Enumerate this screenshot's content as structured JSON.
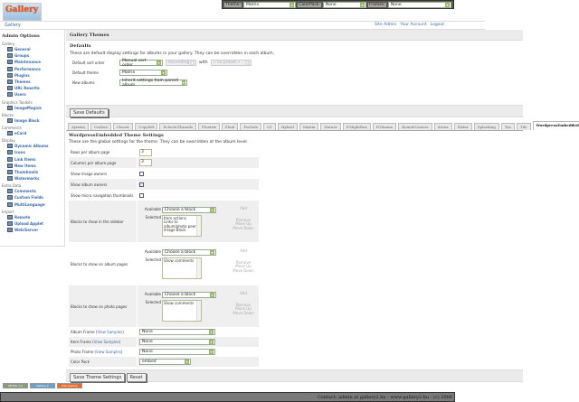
{
  "topbar": {
    "theme_label": "Theme:",
    "theme_value": "Matrix",
    "colorpack_label": "ColorPack:",
    "colorpack_value": "None",
    "frames_label": "Frames:",
    "frames_value": "None"
  },
  "logo": {
    "text": "Gallery"
  },
  "breadcrumb": "Gallery",
  "toplinks": [
    "Site Admin",
    "Your Account",
    "Logout"
  ],
  "sidebar": {
    "title": "Admin Options",
    "groups": [
      {
        "label": "Gallery",
        "items": [
          "General",
          "Groups",
          "Maintenance",
          "Performance",
          "Plugins",
          "Themes",
          "URL Rewrite",
          "Users"
        ]
      },
      {
        "label": "Graphics Toolkits",
        "items": [
          "ImageMagick"
        ]
      },
      {
        "label": "Blocks",
        "items": [
          "Image Block"
        ]
      },
      {
        "label": "Commerce",
        "items": [
          "eCard"
        ]
      },
      {
        "label": "Display",
        "items": [
          "Dynamic Albums",
          "Icons",
          "Link Items",
          "New Items",
          "Thumbnails",
          "Watermarks"
        ]
      },
      {
        "label": "Extra Data",
        "items": [
          "Comments",
          "Custom Fields",
          "MultiLanguage"
        ]
      },
      {
        "label": "Import",
        "items": [
          "Remote",
          "Upload Applet",
          "Web/Server"
        ]
      }
    ],
    "current": "Themes"
  },
  "main": {
    "title": "Gallery Themes",
    "defaults": {
      "heading": "Defaults",
      "description": "These are default display settings for albums in your gallery.  They can be overridden in each album.",
      "sort_label": "Default sort order",
      "sort_value": "Manual sort order",
      "sort_dir": "Ascending",
      "with_label": "with",
      "with_value": "« no preset »",
      "theme_label": "Default theme",
      "theme_value": "Matrix",
      "new_label": "New albums",
      "new_value": "Inherit settings from parent album",
      "save_label": "Save Defaults"
    },
    "tabs": [
      "Ajaxian",
      "Carbon",
      "Classic",
      "Copyleft",
      "EclecticThreads",
      "Floatrix",
      "Fluid",
      "ForSale",
      "G1",
      "Hybrid",
      "Matrix",
      "Nature",
      "PGlightBox",
      "PGtheme",
      "RoundCorners",
      "Siriux",
      "Slider",
      "Splashing",
      "Tea",
      "Tile",
      "WordpressEmbedded"
    ],
    "active_tab": "WordpressEmbedded",
    "settings": {
      "heading": "WordpressEmbedded Theme Settings",
      "description": "These are the global settings for the theme.  They can be overridden at the album level.",
      "rows_label": "Rows per album page",
      "rows_value": "3",
      "cols_label": "Columns per album page",
      "cols_value": "3",
      "image_owners_label": "Show image owners",
      "image_owners": false,
      "album_owners_label": "Show album owners",
      "album_owners": true,
      "micro_label": "Show micro navigation thumbnails",
      "micro": false,
      "available_label": "Available",
      "selected_label": "Selected",
      "choose": "Choose a block",
      "add": "Add",
      "remove": "Remove",
      "move_up": "Move Up",
      "move_down": "Move Down",
      "sidebar_blocks_label": "Blocks to show in the sidebar",
      "sidebar_blocks": [
        "Item actions",
        "Links to album/photo peers",
        "Image Block"
      ],
      "album_blocks_label": "Blocks to show on album pages",
      "album_blocks": [
        "Show comments"
      ],
      "photo_blocks_label": "Blocks to show on photo pages",
      "photo_blocks": [
        "Show comments"
      ],
      "view_samples": "View Samples",
      "album_frame_label": "Album Frame",
      "album_frame": "None",
      "item_frame_label": "Item Frame",
      "item_frame": "None",
      "photo_frame_label": "Photo Frame",
      "photo_frame": "None",
      "colorpack_label": "Color Pack",
      "colorpack": "embed",
      "save_label": "Save Theme Settings",
      "reset_label": "Reset"
    }
  },
  "badges": [
    "XHTML 1.0",
    "Gallery 2",
    "RSS Gallery"
  ],
  "footer": "Contact: admin at gallery2.hu - www.gallery2.hu - (c) 2006"
}
